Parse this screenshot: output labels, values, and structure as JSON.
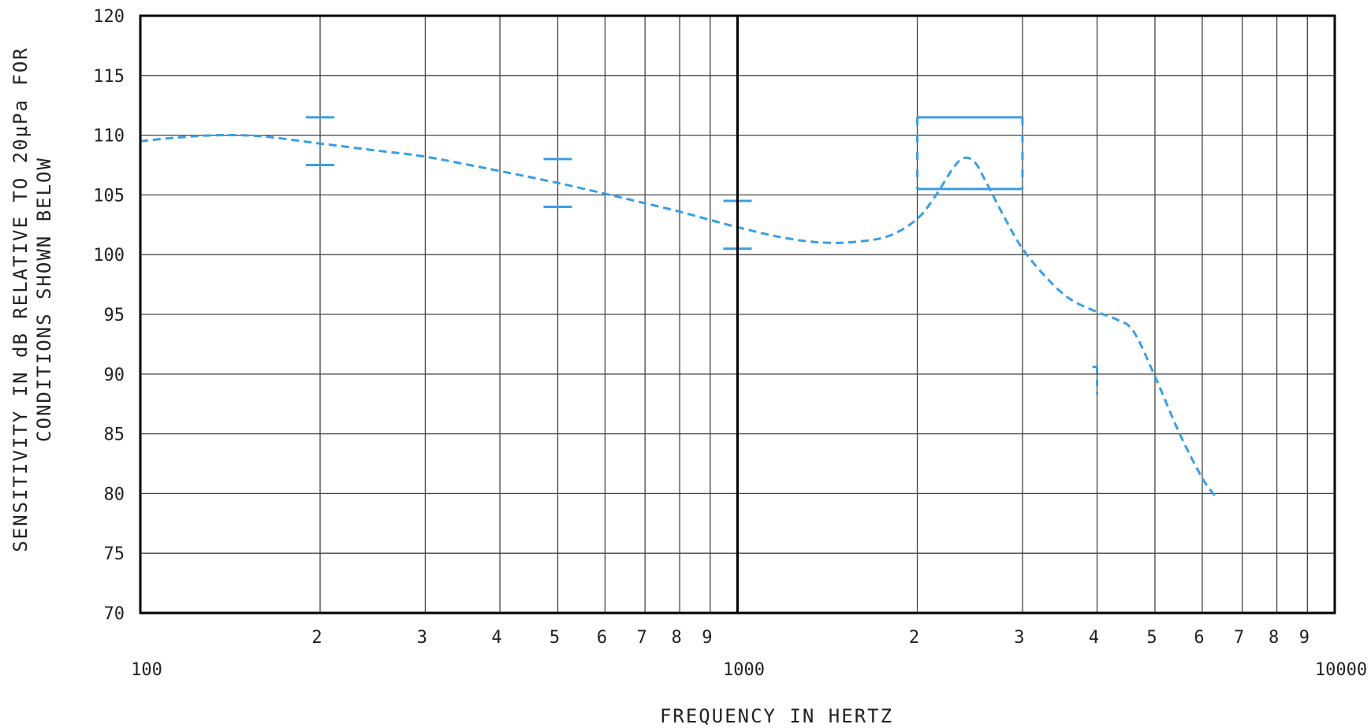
{
  "chart_data": {
    "type": "line",
    "xlabel": "FREQUENCY IN HERTZ",
    "ylabel_lines": [
      "SENSITIVITY IN dB RELATIVE TO 20μPa FOR",
      "CONDITIONS SHOWN BELOW"
    ],
    "xscale": "log",
    "xlim": [
      100,
      10000
    ],
    "ylim": [
      70,
      120
    ],
    "y_ticks": [
      70,
      75,
      80,
      85,
      90,
      95,
      100,
      105,
      110,
      115,
      120
    ],
    "x_major_ticks": [
      {
        "value": 100,
        "label": "100"
      },
      {
        "value": 1000,
        "label": "1000"
      },
      {
        "value": 10000,
        "label": "10000"
      }
    ],
    "x_minor_ticks": [
      {
        "value": 200,
        "label": "2"
      },
      {
        "value": 300,
        "label": "3"
      },
      {
        "value": 400,
        "label": "4"
      },
      {
        "value": 500,
        "label": "5"
      },
      {
        "value": 600,
        "label": "6"
      },
      {
        "value": 700,
        "label": "7"
      },
      {
        "value": 800,
        "label": "8"
      },
      {
        "value": 900,
        "label": "9"
      },
      {
        "value": 2000,
        "label": "2"
      },
      {
        "value": 3000,
        "label": "3"
      },
      {
        "value": 4000,
        "label": "4"
      },
      {
        "value": 5000,
        "label": "5"
      },
      {
        "value": 6000,
        "label": "6"
      },
      {
        "value": 7000,
        "label": "7"
      },
      {
        "value": 8000,
        "label": "8"
      },
      {
        "value": 9000,
        "label": "9"
      }
    ],
    "grid": true,
    "colors": {
      "series": "#3a9ee4",
      "grid": "#444444",
      "frame": "#000000"
    },
    "series": [
      {
        "style": "dashed",
        "x": [
          100,
          115,
          135,
          160,
          200,
          250,
          300,
          400,
          500,
          600,
          700,
          800,
          1000,
          1200,
          1400,
          1600,
          1800,
          2000,
          2150,
          2300,
          2400,
          2500,
          2600,
          2800,
          3000,
          3300,
          3600,
          4000,
          4300,
          4600,
          5000,
          5500,
          6000,
          6300
        ],
        "y": [
          109.5,
          109.8,
          110.0,
          109.9,
          109.3,
          108.7,
          108.2,
          107.0,
          106.0,
          105.1,
          104.3,
          103.6,
          102.3,
          101.4,
          101.0,
          101.1,
          101.6,
          103.0,
          105.0,
          107.3,
          108.1,
          107.7,
          106.2,
          103.1,
          100.5,
          98.0,
          96.3,
          95.2,
          94.6,
          93.6,
          89.8,
          85.0,
          81.3,
          79.8
        ]
      }
    ],
    "tolerance_marks": [
      {
        "freq": 200,
        "upper": 111.5,
        "lower": 107.5
      },
      {
        "freq": 500,
        "upper": 108.0,
        "lower": 104.0
      },
      {
        "freq": 1000,
        "upper": 104.5,
        "lower": 100.5
      }
    ],
    "tolerance_box": {
      "freq_from": 2000,
      "freq_to": 3000,
      "upper": 111.5,
      "lower": 105.5
    },
    "small_marker": {
      "freq": 4000,
      "y_top": 90.6,
      "y_bottom": 88.3
    }
  }
}
